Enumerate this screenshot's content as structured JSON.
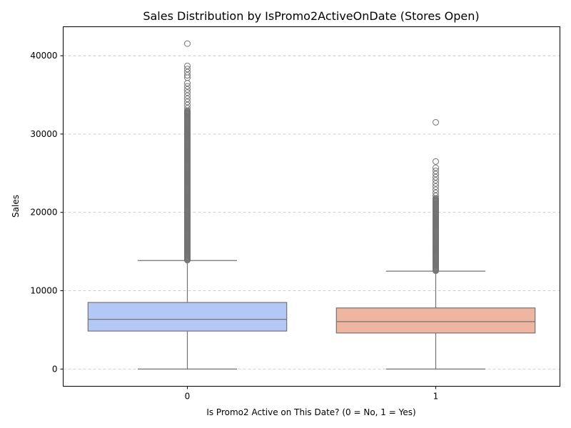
{
  "chart_data": {
    "type": "box",
    "title": "Sales Distribution by IsPromo2ActiveOnDate (Stores Open)",
    "xlabel": "Is Promo2 Active on This Date? (0 = No, 1 = Yes)",
    "ylabel": "Sales",
    "categories": [
      "0",
      "1"
    ],
    "ylim": [
      -2200,
      43700
    ],
    "yticks": [
      0,
      10000,
      20000,
      30000,
      40000
    ],
    "ytick_labels": [
      "0",
      "10000",
      "20000",
      "30000",
      "40000"
    ],
    "grid": "y-dashed",
    "boxes": [
      {
        "category": "0",
        "color": "#b3c8f5",
        "whisker_low": 0,
        "q1": 4850,
        "median": 6350,
        "q3": 8500,
        "whisker_high": 13850,
        "outliers_dense_range": [
          13900,
          33000
        ],
        "outliers": [
          33300,
          33700,
          34100,
          34500,
          34900,
          35300,
          35700,
          36100,
          36500,
          37200,
          37500,
          37900,
          38300,
          38700,
          41550
        ]
      },
      {
        "category": "1",
        "color": "#eeb5a0",
        "whisker_low": 0,
        "q1": 4600,
        "median": 6050,
        "q3": 7800,
        "whisker_high": 12500,
        "outliers_dense_range": [
          12550,
          21800
        ],
        "outliers": [
          22100,
          22500,
          22900,
          23300,
          23700,
          24100,
          24500,
          24900,
          25300,
          25700,
          26500,
          31500
        ]
      }
    ]
  }
}
